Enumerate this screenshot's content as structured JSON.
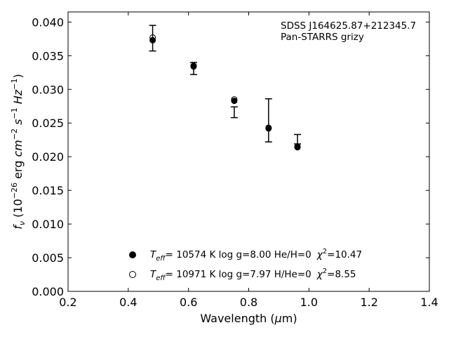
{
  "chart_data": {
    "type": "scatter",
    "xlabel": "Wavelength (μm)",
    "xlabel_parts": {
      "main": "Wavelength (",
      "unit_sym": "μ",
      "unit": "m)"
    },
    "ylabel": "f_ν (10^−26 erg cm^−2 s^−1 Hz^−1)",
    "xlim": [
      0.2,
      1.4
    ],
    "ylim": [
      0.0,
      0.0415
    ],
    "xticks": [
      0.2,
      0.4,
      0.6,
      0.8,
      1.0,
      1.2,
      1.4
    ],
    "xtick_labels": [
      "0.2",
      "0.4",
      "0.6",
      "0.8",
      "1.0",
      "1.2",
      "1.4"
    ],
    "yticks": [
      0.0,
      0.005,
      0.01,
      0.015,
      0.02,
      0.025,
      0.03,
      0.035,
      0.04
    ],
    "ytick_labels": [
      "0.000",
      "0.005",
      "0.010",
      "0.015",
      "0.020",
      "0.025",
      "0.030",
      "0.035",
      "0.040"
    ],
    "annotation": [
      "SDSS J164625.87+212345.7",
      "Pan-STARRS grizy"
    ],
    "observed": {
      "x": [
        0.481,
        0.617,
        0.752,
        0.866,
        0.962
      ],
      "y": [
        0.0376,
        0.0331,
        0.0266,
        0.0254,
        0.0226
      ],
      "yerr": [
        0.0019,
        0.0009,
        0.0008,
        0.0032,
        0.0007
      ]
    },
    "series": [
      {
        "marker": "filled-circle",
        "x": [
          0.481,
          0.617,
          0.752,
          0.866,
          0.962
        ],
        "y": [
          0.0373,
          0.0334,
          0.0283,
          0.0242,
          0.0214
        ],
        "legend": {
          "teff_label": "eff",
          "text": "= 10574 K  log g=8.00  He/H=0",
          "chi": "=10.47"
        }
      },
      {
        "marker": "open-circle",
        "x": [
          0.481,
          0.617,
          0.752,
          0.866,
          0.962
        ],
        "y": [
          0.0377,
          0.0335,
          0.0285,
          0.0243,
          0.0215
        ],
        "legend": {
          "teff_label": "eff",
          "text": "= 10971 K  log g=7.97  H/He=0",
          "chi": "=8.55"
        }
      }
    ],
    "legend_position": "bottom-center"
  }
}
